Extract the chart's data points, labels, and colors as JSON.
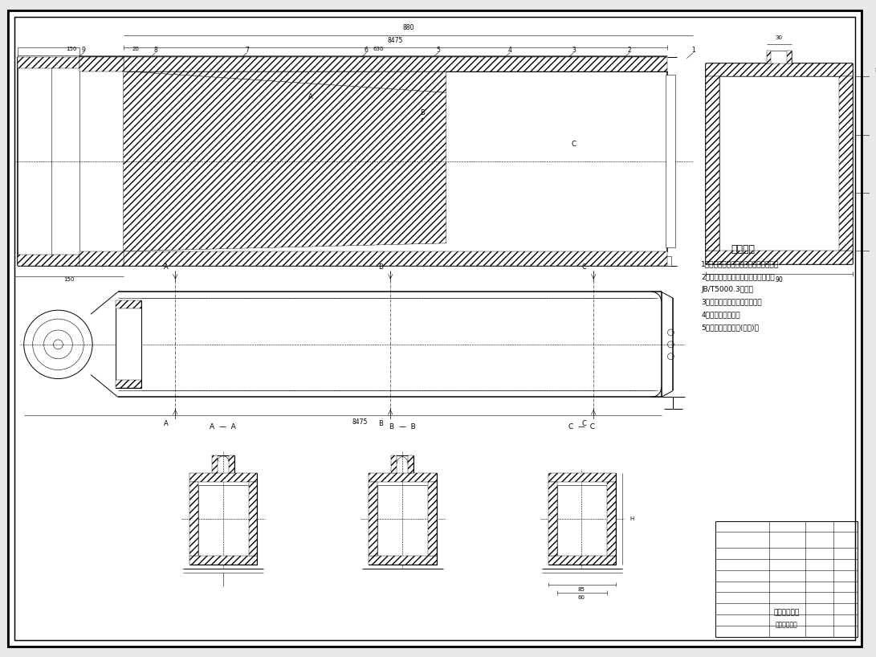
{
  "bg_color": "#e8e8e8",
  "paper_color": "#ffffff",
  "line_color": "#000000",
  "title_tech": "技术条件",
  "tech_conditions": [
    "1、所有焊缝不准有不透、焊蚀等缺陷。",
    "2、焊接件未注尺寸公差与形位公差按",
    "JB/T5000.3执行。",
    "3、焊件人工时效，去除应力。",
    "4、表面喷丸处理。",
    "5、表面处理：喷塑(红色)。"
  ],
  "font_size_title": 9,
  "font_size_body": 6.5,
  "font_size_small": 5.5,
  "lw_thin": 0.4,
  "lw_med": 0.7,
  "lw_thick": 1.1
}
